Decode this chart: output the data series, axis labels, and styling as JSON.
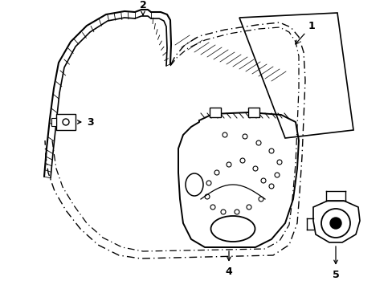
{
  "background_color": "#ffffff",
  "figsize": [
    4.89,
    3.6
  ],
  "dpi": 100,
  "xlim": [
    0,
    489
  ],
  "ylim": [
    0,
    360
  ]
}
